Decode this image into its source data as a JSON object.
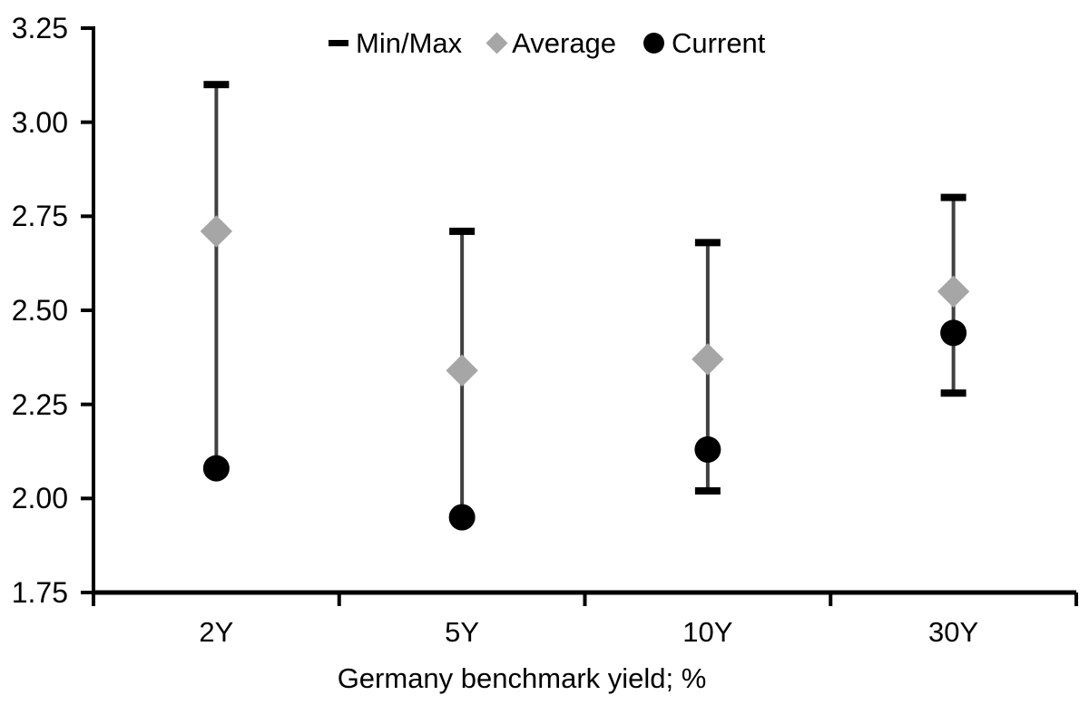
{
  "colors": {
    "background": "#ffffff",
    "axis": "#000000",
    "text": "#000000",
    "range_line": "#404040",
    "cap": "#000000",
    "average_marker": "#a6a6a6",
    "current_marker": "#000000"
  },
  "chart_data": {
    "type": "scatter",
    "subtype": "min-max-range",
    "title": "",
    "xlabel": "Germany benchmark yield; %",
    "ylabel": "",
    "categories": [
      "2Y",
      "5Y",
      "10Y",
      "30Y"
    ],
    "ylim": [
      1.75,
      3.25
    ],
    "ytick_interval": 0.25,
    "ytick_labels": [
      "3.25",
      "3.00",
      "2.75",
      "2.50",
      "2.25",
      "2.00",
      "1.75"
    ],
    "grid": false,
    "legend_position": "top",
    "series": [
      {
        "name": "Min/Max",
        "marker": "range-bar",
        "min": [
          2.08,
          1.95,
          2.02,
          2.28
        ],
        "max": [
          3.1,
          2.71,
          2.68,
          2.8
        ]
      },
      {
        "name": "Average",
        "marker": "diamond",
        "values": [
          2.71,
          2.34,
          2.37,
          2.55
        ]
      },
      {
        "name": "Current",
        "marker": "circle",
        "values": [
          2.08,
          1.95,
          2.13,
          2.44
        ]
      }
    ]
  }
}
